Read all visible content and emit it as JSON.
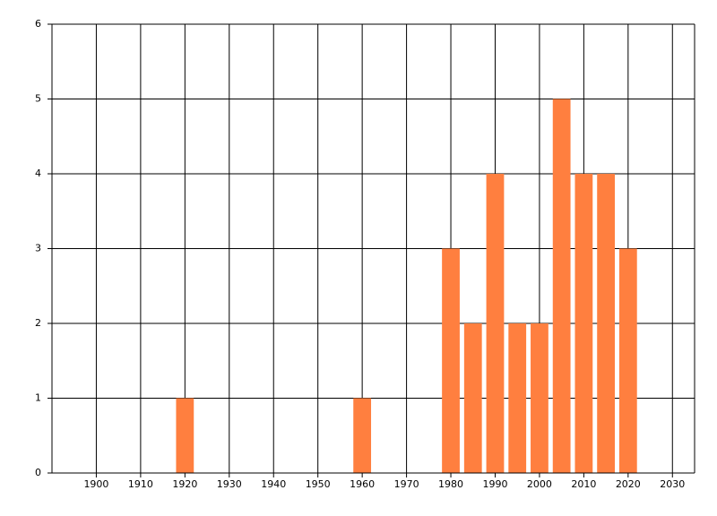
{
  "chart_data": {
    "type": "bar",
    "x": [
      1920,
      1960,
      1980,
      1985,
      1990,
      1995,
      2000,
      2005,
      2010,
      2015,
      2020
    ],
    "values": [
      1,
      1,
      3,
      2,
      4,
      2,
      2,
      5,
      4,
      4,
      3
    ],
    "color": "#ff7f3f",
    "xlim": [
      1890,
      2035
    ],
    "xticks": [
      1900,
      1910,
      1920,
      1930,
      1940,
      1950,
      1960,
      1970,
      1980,
      1990,
      2000,
      2010,
      2020,
      2030
    ],
    "ylim": [
      0,
      6
    ],
    "yticks": [
      0,
      1,
      2,
      3,
      4,
      5,
      6
    ],
    "grid": true
  }
}
